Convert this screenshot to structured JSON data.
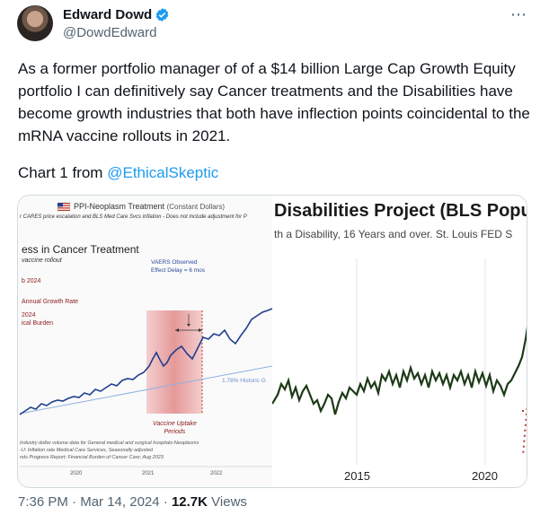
{
  "author": {
    "name": "Edward Dowd",
    "handle": "@DowdEdward"
  },
  "tweet": {
    "text": "As a former portfolio manager of of a $14 billion Large Cap Growth Equity portfolio I can definitively say Cancer treatments and the Disabilities have become growth industries that both have inflection points coincidental to the mRNA vaccine rollouts in 2021.",
    "chart_prefix": "Chart 1 from",
    "mention": "@EthicalSkeptic"
  },
  "left_chart": {
    "title": "PPI-Neoplasm Treatment",
    "title_paren": "(Constant Dollars)",
    "subtitle": "r CARES price escalation and BLS Med Care Svcs inflation - Does not include adjustment for P",
    "heading": "ess in Cancer Treatment",
    "note1": "vaccine rollout",
    "note2": "b 2024",
    "note3": "Annual Growth Rate",
    "note4": "2024",
    "note5": "ical Burden",
    "vaers_label": "VAERS Observed",
    "vaers_label2": "Effect Delay = 6 mos",
    "historic": "1.78% Historic G",
    "vaccine_label": "Vaccine Uptake",
    "vaccine_label2": "Periods",
    "foot1": "Industry dollar volume data for General medical and surgical hospitals-Neoplasms",
    "foot2": "-U: Inflation rate Medical Care Services, Seasonally adjusted",
    "foot3": "nds Progress Report: Financial Burden of Cancer Care; Aug 2023",
    "x_labels": [
      "2020",
      "2021",
      "2022"
    ]
  },
  "right_chart": {
    "title": "Disabilities Project (BLS Popula",
    "subtitle": "th a Disability, 16 Years and over.  St. Louis FED S",
    "x_labels": [
      "2015",
      "2020"
    ]
  },
  "footer": {
    "time": "7:36 PM",
    "sep": "·",
    "date": "Mar 14, 2024",
    "views_count": "12.7K",
    "views_label": "Views"
  },
  "colors": {
    "verified_blue": "#1d9bf0",
    "series_line": "#1f3f8f",
    "disability_line": "#1c3a16",
    "red_dots": "#c0392b"
  }
}
